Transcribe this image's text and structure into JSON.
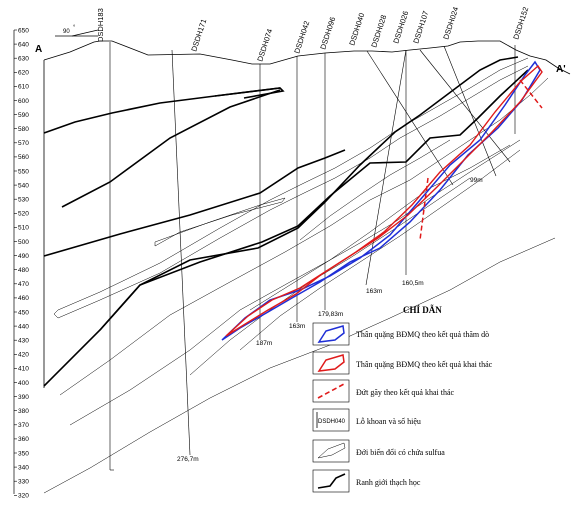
{
  "section": {
    "start_label": "A",
    "end_label": "A'"
  },
  "azimuth_label": "90",
  "elevations": [
    "650",
    "640",
    "630",
    "620",
    "610",
    "600",
    "590",
    "580",
    "570",
    "560",
    "550",
    "540",
    "530",
    "520",
    "510",
    "500",
    "490",
    "480",
    "470",
    "460",
    "450",
    "440",
    "430",
    "420",
    "410",
    "400",
    "390",
    "380",
    "370",
    "360",
    "350",
    "340",
    "330",
    "320"
  ],
  "boreholes": [
    "DSDH183",
    "DSDH171",
    "DSDH074",
    "DSDH042",
    "DSDH096",
    "DSDH040",
    "DSDH028",
    "DSDH026",
    "DSDH107",
    "DSDH024",
    "DSDH152"
  ],
  "depths": [
    "99m",
    "163m",
    "160,5m",
    "179,83m",
    "163m",
    "187m",
    "276,7m"
  ],
  "legend": {
    "title": "CHỈ DẪN",
    "items": [
      {
        "label": "Thân quặng BĐMQ theo kết quả thăm dò",
        "color": "#1f2fd6"
      },
      {
        "label": "Thân quặng BĐMQ theo kết quả khai thác",
        "color": "#e01b1b"
      },
      {
        "label": "Đứt gãy theo kết quả khai thác",
        "color": "#e01b1b"
      },
      {
        "label": "Lỗ khoan và số hiệu",
        "icon_text": "DSDH040"
      },
      {
        "label": "Đới biến đổi có chứa sulfua"
      },
      {
        "label": "Ranh giới thạch học"
      }
    ]
  }
}
